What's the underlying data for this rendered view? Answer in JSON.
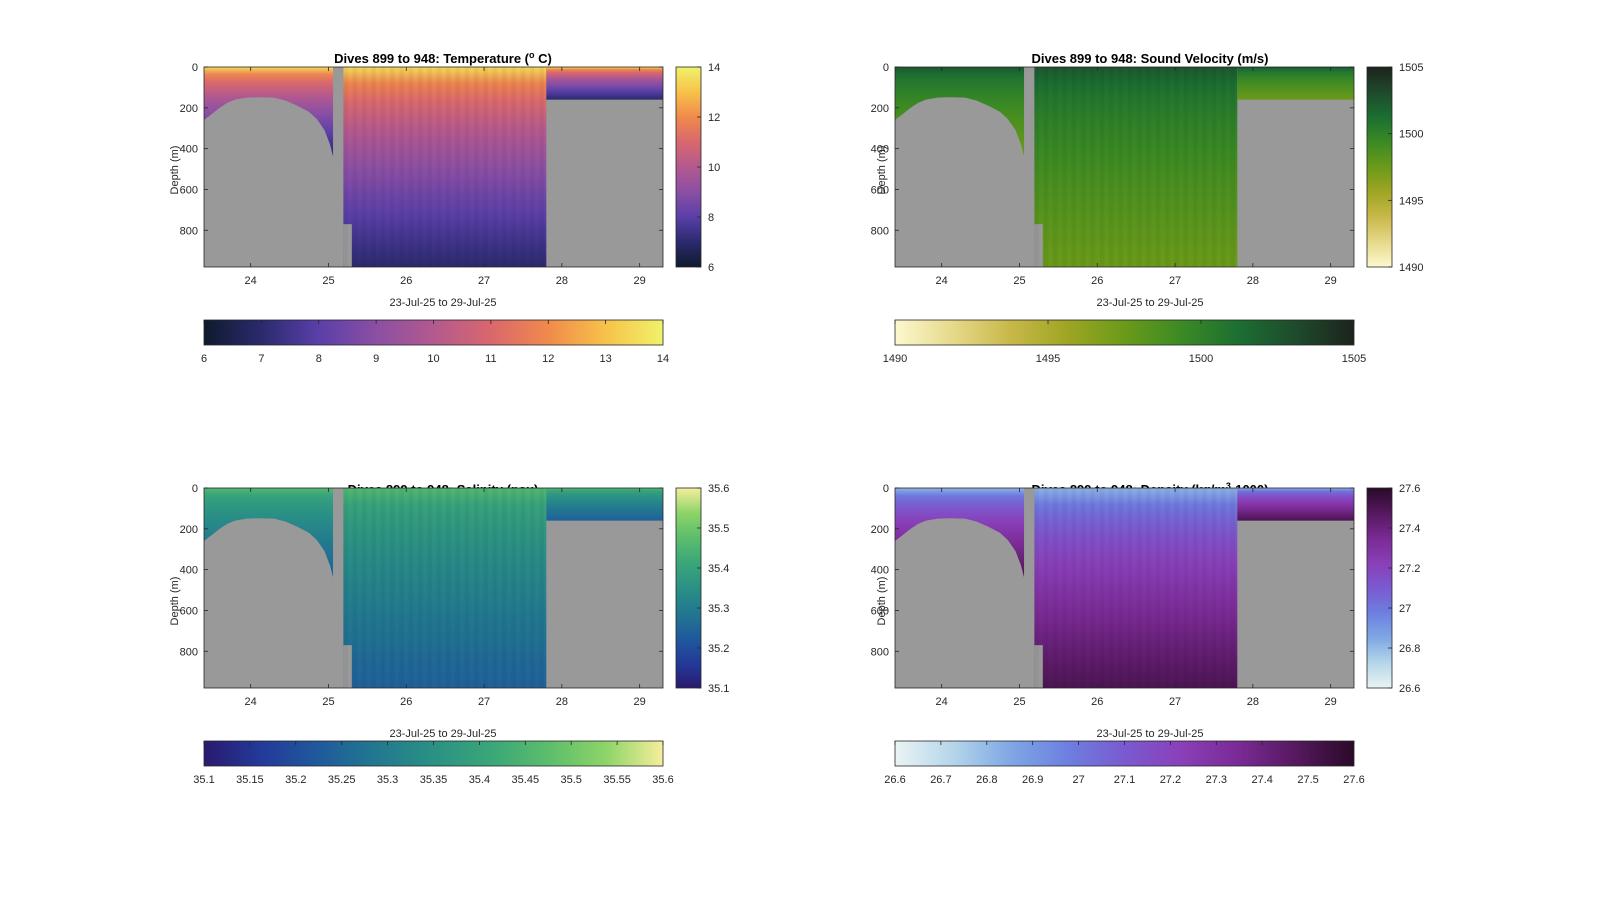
{
  "figure": {
    "title": "",
    "panels_count": 4
  },
  "chart_data": [
    {
      "type": "heatmap",
      "id": "temperature",
      "title_prefix": "Dives 899 to 948: Temperature (",
      "title_sup": "o",
      "title_suffix": " C)",
      "xlabel": "23-Jul-25 to 29-Jul-25",
      "ylabel": "Depth (m)",
      "x_ticks": [
        "24",
        "25",
        "26",
        "27",
        "28",
        "29"
      ],
      "y_ticks": [
        "0",
        "200",
        "400",
        "600",
        "800"
      ],
      "colorbar_vertical_ticks": [
        "6",
        "8",
        "10",
        "12",
        "14"
      ],
      "colorbar_horizontal_ticks": [
        "6",
        "7",
        "8",
        "9",
        "10",
        "11",
        "12",
        "13",
        "14"
      ],
      "clim": [
        6,
        14
      ],
      "surface_value": 13.5,
      "deep_value": 7.0,
      "colormap": [
        "#0f1a2c",
        "#2b2a6e",
        "#5a3fa8",
        "#8b4fa3",
        "#b3598f",
        "#d9676d",
        "#f08a4b",
        "#f7c24a",
        "#f0f26a"
      ],
      "nan_color": "#999999"
    },
    {
      "type": "heatmap",
      "id": "sound_velocity",
      "title_prefix": "Dives 899 to 948: Sound Velocity (m/s)",
      "title_sup": "",
      "title_suffix": "",
      "xlabel": "23-Jul-25 to 29-Jul-25",
      "ylabel": "Depth (m)",
      "x_ticks": [
        "24",
        "25",
        "26",
        "27",
        "28",
        "29"
      ],
      "y_ticks": [
        "0",
        "200",
        "400",
        "600",
        "800"
      ],
      "colorbar_vertical_ticks": [
        "1490",
        "1495",
        "1500",
        "1505"
      ],
      "colorbar_horizontal_ticks": [
        "1490",
        "1495",
        "1500",
        "1505"
      ],
      "clim": [
        1490,
        1505
      ],
      "surface_value": 1502.5,
      "deep_value": 1497.5,
      "colormap": [
        "#fdf8d0",
        "#e6d98a",
        "#c8b84a",
        "#9fa523",
        "#6b9a1a",
        "#3b8a24",
        "#1b6e32",
        "#1f4a2c",
        "#1c231c"
      ],
      "nan_color": "#999999"
    },
    {
      "type": "heatmap",
      "id": "salinity",
      "title_prefix": "Dives 899 to 948: Salinity (psu)",
      "title_sup": "",
      "title_suffix": "",
      "xlabel": "23-Jul-25 to 29-Jul-25",
      "ylabel": "Depth (m)",
      "x_ticks": [
        "24",
        "25",
        "26",
        "27",
        "28",
        "29"
      ],
      "y_ticks": [
        "0",
        "200",
        "400",
        "600",
        "800"
      ],
      "colorbar_vertical_ticks": [
        "35.1",
        "35.2",
        "35.3",
        "35.4",
        "35.5",
        "35.6"
      ],
      "colorbar_horizontal_ticks": [
        "35.1",
        "35.15",
        "35.2",
        "35.25",
        "35.3",
        "35.35",
        "35.4",
        "35.45",
        "35.5",
        "35.55",
        "35.6"
      ],
      "clim": [
        35.1,
        35.6
      ],
      "surface_value": 35.46,
      "deep_value": 35.24,
      "colormap": [
        "#2a1a6e",
        "#233a9a",
        "#1f5a9c",
        "#22788f",
        "#2a9184",
        "#3aa679",
        "#5cbd6c",
        "#8dd468",
        "#f6ee9c"
      ],
      "nan_color": "#999999"
    },
    {
      "type": "heatmap",
      "id": "density",
      "title_prefix": "Dives 899 to 948: Density (kg/m",
      "title_sup": "3",
      "title_suffix": "-1000)",
      "xlabel": "23-Jul-25 to 29-Jul-25",
      "ylabel": "Depth (m)",
      "x_ticks": [
        "24",
        "25",
        "26",
        "27",
        "28",
        "29"
      ],
      "y_ticks": [
        "0",
        "200",
        "400",
        "600",
        "800"
      ],
      "colorbar_vertical_ticks": [
        "26.6",
        "26.8",
        "27",
        "27.2",
        "27.4",
        "27.6"
      ],
      "colorbar_horizontal_ticks": [
        "26.6",
        "26.7",
        "26.8",
        "26.9",
        "27",
        "27.1",
        "27.2",
        "27.3",
        "27.4",
        "27.5",
        "27.6"
      ],
      "clim": [
        26.6,
        27.6
      ],
      "surface_value": 26.82,
      "deep_value": 27.5,
      "colormap": [
        "#eaf4f4",
        "#b5d6ea",
        "#7fa8e4",
        "#6d7fe0",
        "#7a5ad0",
        "#8a3fb8",
        "#7a2a94",
        "#55185e",
        "#2a0a28"
      ],
      "nan_color": "#999999"
    }
  ],
  "data_extent": {
    "x_range_days": [
      23.4,
      29.3
    ],
    "depth_range_m": [
      0,
      980
    ],
    "gap_x": [
      25.06,
      25.19
    ]
  }
}
